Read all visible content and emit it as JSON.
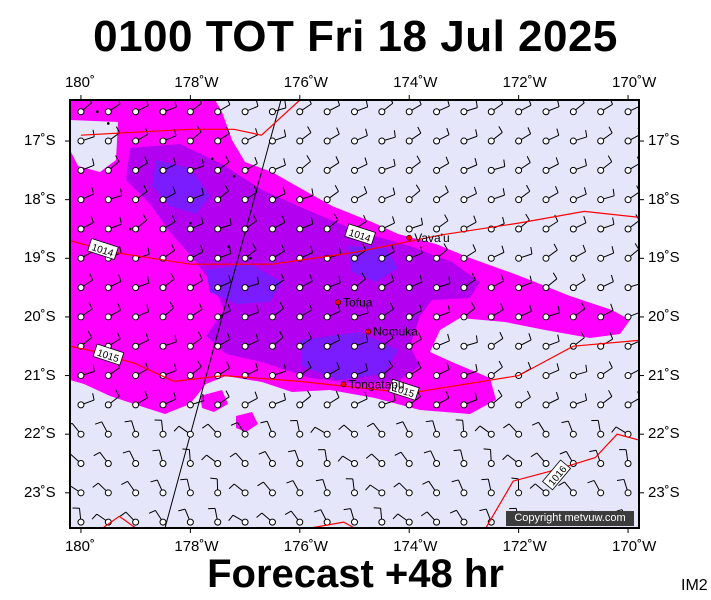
{
  "title": "0100 TOT Fri 18 Jul 2025",
  "footer": "Forecast +48 hr",
  "corner_label": "IM2",
  "copyright": "Copyright metvuw.com",
  "map": {
    "lon_min": 179.8,
    "lon_max": 190.2,
    "lat_min": -23.6,
    "lat_max": -16.3,
    "lon_ticks": [
      {
        "lon": 180,
        "label": "180˚"
      },
      {
        "lon": 182,
        "label": "178˚W"
      },
      {
        "lon": 184,
        "label": "176˚W"
      },
      {
        "lon": 186,
        "label": "174˚W"
      },
      {
        "lon": 188,
        "label": "172˚W"
      },
      {
        "lon": 190,
        "label": "170˚W"
      }
    ],
    "lat_ticks": [
      {
        "lat": -17,
        "label": "17˚S"
      },
      {
        "lat": -18,
        "label": "18˚S"
      },
      {
        "lat": -19,
        "label": "19˚S"
      },
      {
        "lat": -20,
        "label": "20˚S"
      },
      {
        "lat": -21,
        "label": "21˚S"
      },
      {
        "lat": -22,
        "label": "22˚S"
      },
      {
        "lat": -23,
        "label": "23˚S"
      }
    ],
    "isobars": [
      {
        "label": "1014",
        "points": [
          [
            179.8,
            -18.7
          ],
          [
            180.6,
            -18.9
          ],
          [
            182,
            -19.1
          ],
          [
            183.5,
            -19.1
          ],
          [
            185,
            -18.9
          ],
          [
            186.6,
            -18.6
          ],
          [
            188,
            -18.4
          ],
          [
            189.2,
            -18.2
          ],
          [
            190.2,
            -18.3
          ]
        ],
        "label_at": [
          180.4,
          -18.85
        ],
        "label2": "1014",
        "label2_at": [
          185.1,
          -18.6
        ]
      },
      {
        "label": "1015",
        "points": [
          [
            179.8,
            -20.5
          ],
          [
            180.3,
            -20.6
          ],
          [
            181,
            -20.8
          ],
          [
            181.7,
            -21.1
          ],
          [
            182.6,
            -21.0
          ],
          [
            184,
            -21.1
          ],
          [
            185,
            -21.2
          ],
          [
            186,
            -21.3
          ],
          [
            187,
            -21.15
          ],
          [
            188,
            -21.0
          ],
          [
            189,
            -20.5
          ],
          [
            190.2,
            -20.4
          ]
        ],
        "label_at": [
          180.5,
          -20.65
        ],
        "label2": "1015",
        "label2_at": [
          185.9,
          -21.25
        ]
      },
      {
        "label": "1016",
        "points": [
          [
            187.4,
            -23.6
          ],
          [
            187.9,
            -22.8
          ],
          [
            188.7,
            -22.6
          ],
          [
            189.4,
            -22.4
          ],
          [
            189.8,
            -22.0
          ],
          [
            190.2,
            -22.1
          ]
        ],
        "label_at": [
          188.7,
          -22.7
        ]
      },
      {
        "label": "",
        "points": [
          [
            180,
            -16.9
          ],
          [
            181,
            -16.85
          ],
          [
            182,
            -16.8
          ],
          [
            182.8,
            -16.8
          ],
          [
            183.3,
            -16.9
          ],
          [
            184,
            -16.3
          ]
        ],
        "label_at": null
      },
      {
        "label": "",
        "points": [
          [
            180.4,
            -23.6
          ],
          [
            180.7,
            -23.4
          ],
          [
            181,
            -23.6
          ]
        ],
        "label_at": null
      },
      {
        "label": "",
        "points": [
          [
            184.2,
            -23.6
          ],
          [
            184.8,
            -23.5
          ],
          [
            185,
            -23.6
          ]
        ],
        "label_at": null
      }
    ],
    "places": [
      {
        "name": "Vava'u",
        "lon": 186.0,
        "lat": -18.65
      },
      {
        "name": "Tofua",
        "lon": 184.7,
        "lat": -19.75
      },
      {
        "name": "Nomuka",
        "lon": 185.25,
        "lat": -20.25
      },
      {
        "name": "Tongatapu",
        "lon": 184.8,
        "lat": -21.15
      }
    ],
    "colors": {
      "ocean": "#e6e6fb",
      "rain_light": "#ff00ff",
      "rain_mid": "#b400f0",
      "rain_heavy": "#7a1cff",
      "isobar": "#ff0000",
      "barb": "#000000"
    }
  }
}
